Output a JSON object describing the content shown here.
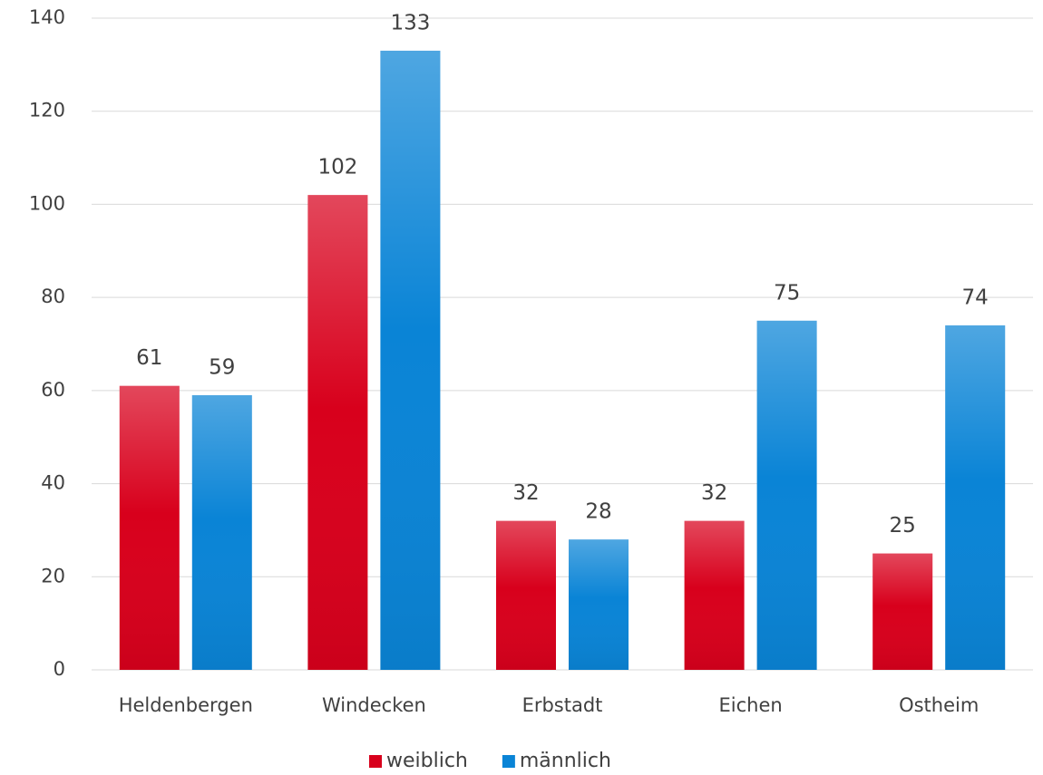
{
  "chart_data": {
    "type": "bar",
    "categories": [
      "Heldenbergen",
      "Windecken",
      "Erbstadt",
      "Eichen",
      "Ostheim"
    ],
    "series": [
      {
        "name": "weiblich",
        "color": "#d8001c",
        "values": [
          61,
          102,
          32,
          32,
          25
        ]
      },
      {
        "name": "männlich",
        "color": "#0a84d6",
        "values": [
          59,
          133,
          28,
          75,
          74
        ]
      }
    ],
    "ylim": [
      0,
      140
    ],
    "yticks": [
      0,
      20,
      40,
      60,
      80,
      100,
      120,
      140
    ],
    "grid": true,
    "legend": "bottom"
  }
}
